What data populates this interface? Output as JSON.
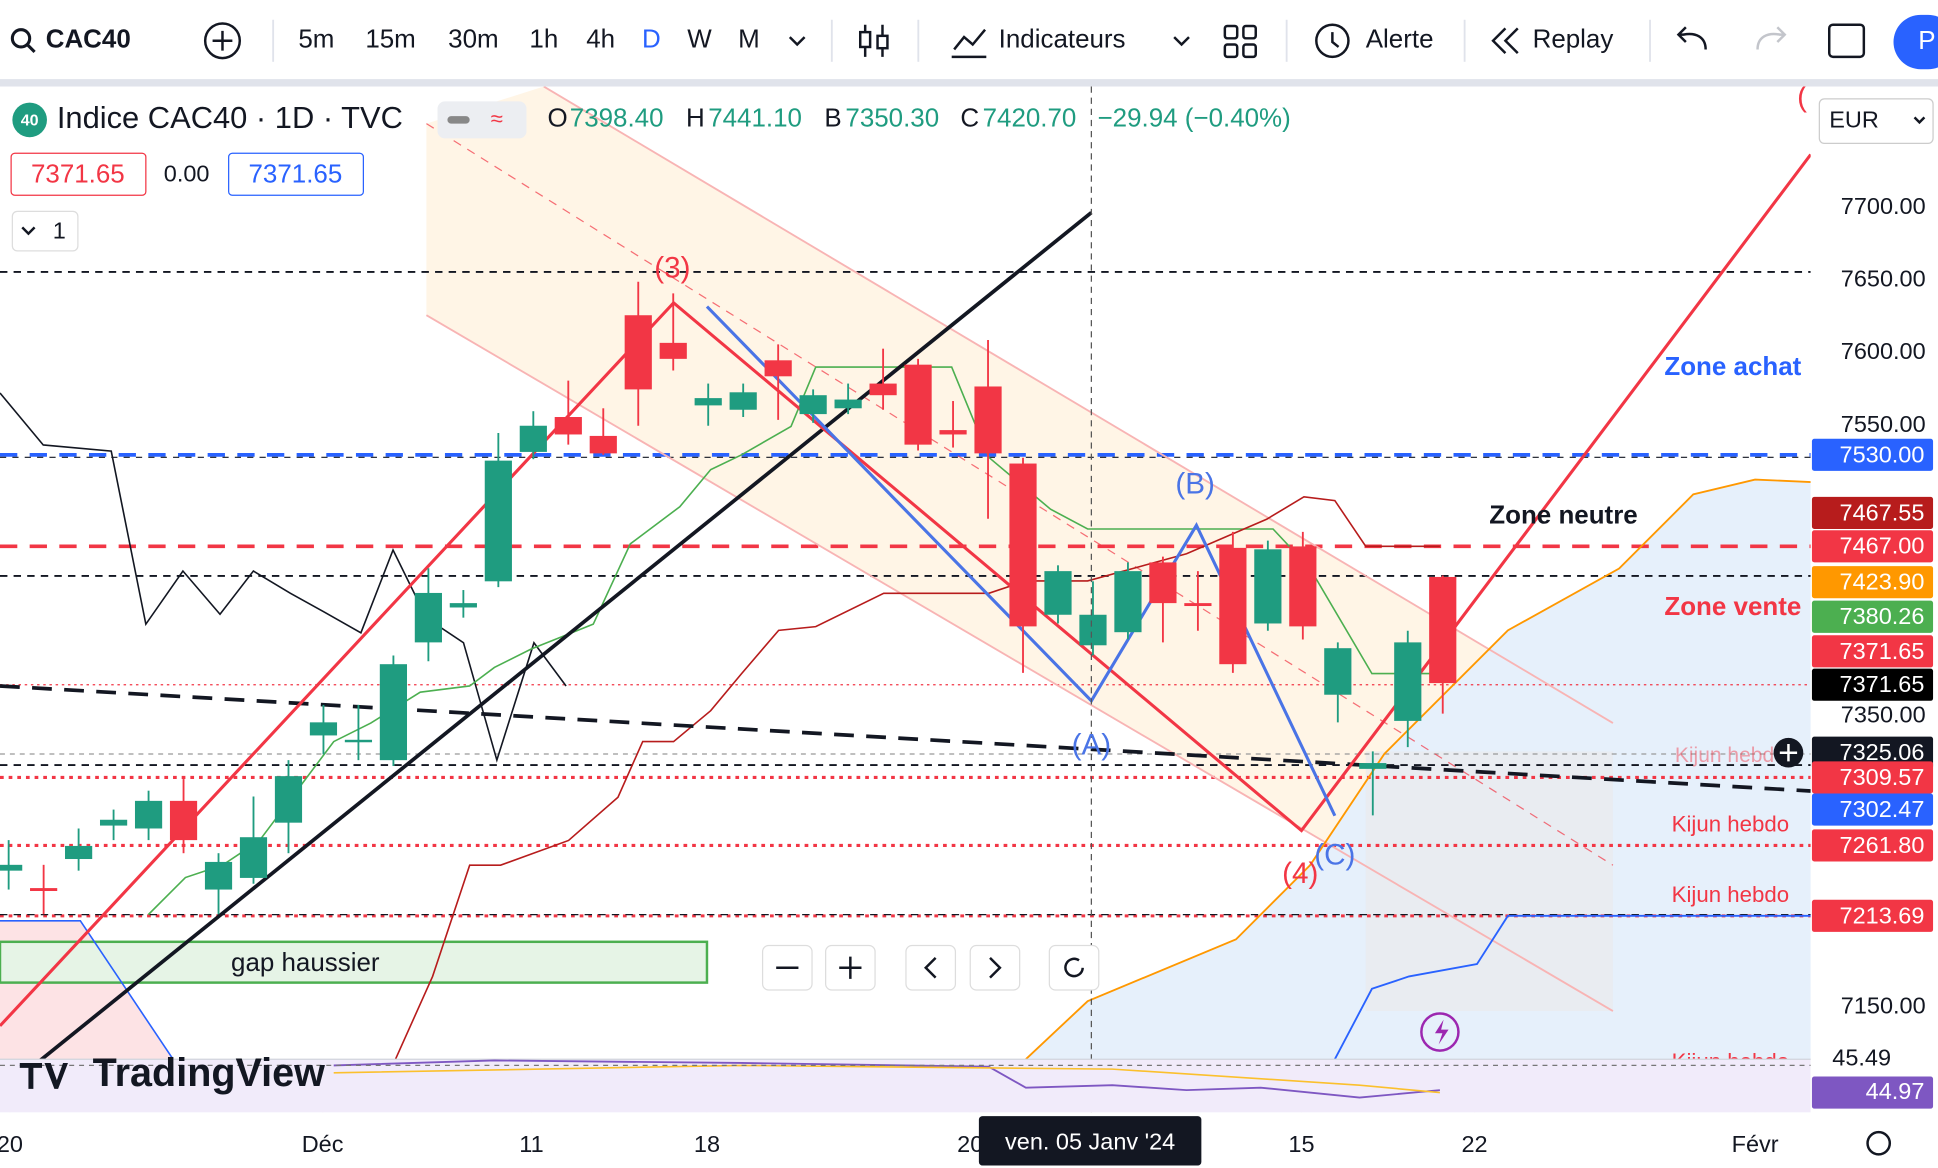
{
  "toolbar": {
    "symbol": "CAC40",
    "intervals": [
      "5m",
      "15m",
      "30m",
      "1h",
      "4h",
      "D",
      "W",
      "M"
    ],
    "indicators": "Indicateurs",
    "alert": "Alerte",
    "replay": "Replay",
    "account": "P"
  },
  "legend": {
    "badge": "40",
    "title": "Indice CAC40 · 1D · TVC",
    "open_label": "O",
    "open": "7398.40",
    "high_label": "H",
    "high": "7441.10",
    "low_label": "B",
    "low": "7350.30",
    "close_label": "C",
    "close": "7420.70",
    "change": "−29.94 (−0.40%)",
    "bid": "7371.65",
    "spread": "0.00",
    "ask": "7371.65",
    "collapsed": "1"
  },
  "price_axis": {
    "currency": "EUR",
    "ticks": [
      {
        "value": 7700,
        "label": "7700.00"
      },
      {
        "value": 7650,
        "label": "7650.00"
      },
      {
        "value": 7600,
        "label": "7600.00"
      },
      {
        "value": 7550,
        "label": "7550.00"
      },
      {
        "value": 7350,
        "label": "7350.00"
      },
      {
        "value": 7150,
        "label": "7150.00"
      }
    ],
    "tags": [
      {
        "label": "7530.00",
        "color": "#2962ff"
      },
      {
        "label": "7467.55",
        "color": "#b71c1c"
      },
      {
        "label": "7467.00",
        "color": "#f23645"
      },
      {
        "label": "7423.90",
        "color": "#ff9800"
      },
      {
        "label": "7380.26",
        "color": "#4caf50"
      },
      {
        "label": "7371.65",
        "color": "#f23645"
      },
      {
        "label": "7371.65",
        "color": "#000000"
      },
      {
        "label": "7325.06",
        "color": "#131722"
      },
      {
        "label": "7309.57",
        "color": "#f23645"
      },
      {
        "label": "7302.47",
        "color": "#2962ff"
      },
      {
        "label": "7261.80",
        "color": "#f23645"
      },
      {
        "label": "7213.69",
        "color": "#f23645"
      }
    ],
    "osc_ticks": [
      "45.49",
      "44.97"
    ]
  },
  "time_axis": {
    "labels": [
      "20",
      "Déc",
      "11",
      "18",
      "20",
      "15",
      "22",
      "Févr"
    ],
    "crosshair": "ven. 05 Janv '24"
  },
  "annotations": {
    "zone_achat": "Zone achat",
    "zone_neutre": "Zone neutre",
    "zone_vente": "Zone vente",
    "kijun": [
      "Kijun hebdo",
      "Kijun hebdo",
      "Kijun hebdo",
      "Kijun hebdo"
    ],
    "wave_3": "(3)",
    "wave_4": "(4)",
    "wave_a": "(A)",
    "wave_b": "(B)",
    "wave_c": "(C)",
    "gap": "gap haussier",
    "logo": "TradingView"
  },
  "candles": {
    "open": [
      7244,
      7232,
      7252,
      7275,
      7273,
      7292,
      7231,
      7239,
      7277,
      7337,
      7333,
      7320,
      7401,
      7425,
      7443,
      7532,
      7556,
      7543,
      7626,
      7607,
      7564,
      7561,
      7595,
      7558,
      7562,
      7579,
      7592,
      7547,
      7577,
      7524,
      7420,
      7399,
      7408,
      7456,
      7428,
      7466,
      7414,
      7467,
      7365,
      7314,
      7347,
      7446
    ],
    "high": [
      7265,
      7248,
      7273,
      7286,
      7299,
      7307,
      7256,
      7295,
      7320,
      7358,
      7358,
      7392,
      7452,
      7437,
      7545,
      7560,
      7581,
      7562,
      7649,
      7641,
      7579,
      7579,
      7606,
      7575,
      7579,
      7603,
      7596,
      7567,
      7609,
      7528,
      7454,
      7443,
      7456,
      7460,
      7450,
      7477,
      7471,
      7477,
      7401,
      7326,
      7409,
      7447
    ],
    "low": [
      7231,
      7214,
      7244,
      7265,
      7265,
      7256,
      7214,
      7235,
      7256,
      7324,
      7320,
      7316,
      7388,
      7418,
      7439,
      7527,
      7537,
      7530,
      7550,
      7588,
      7550,
      7556,
      7554,
      7552,
      7558,
      7561,
      7533,
      7535,
      7486,
      7380,
      7414,
      7392,
      7403,
      7401,
      7409,
      7380,
      7409,
      7403,
      7346,
      7282,
      7329,
      7352
    ],
    "close": [
      7248,
      7230,
      7261,
      7279,
      7292,
      7265,
      7250,
      7267,
      7309,
      7346,
      7334,
      7386,
      7435,
      7428,
      7526,
      7550,
      7544,
      7531,
      7575,
      7596,
      7569,
      7573,
      7584,
      7571,
      7568,
      7571,
      7537,
      7544,
      7531,
      7412,
      7450,
      7420,
      7450,
      7428,
      7426,
      7386,
      7465,
      7412,
      7397,
      7318,
      7401,
      7373
    ]
  }
}
